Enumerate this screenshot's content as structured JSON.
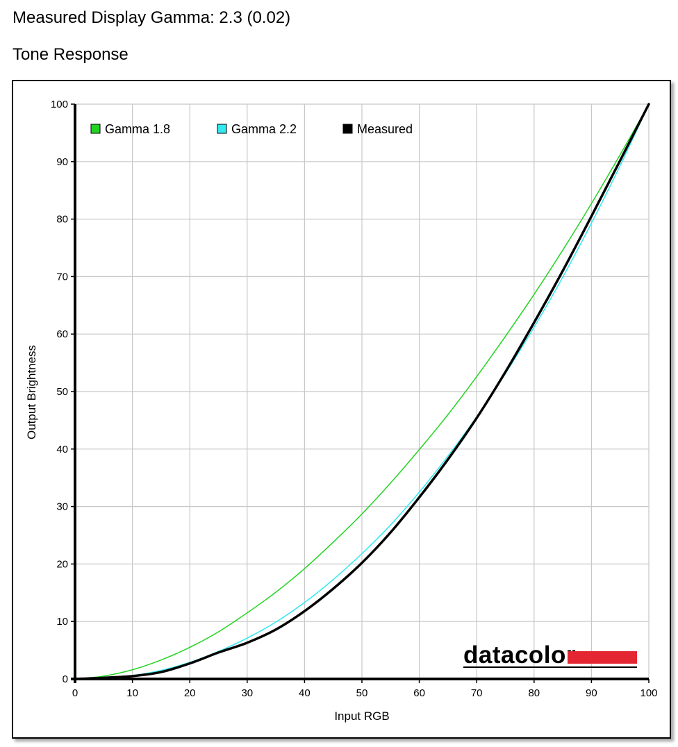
{
  "header": {
    "measured_gamma": "Measured Display Gamma: 2.3 (0.02)",
    "section_title": "Tone Response"
  },
  "logo": {
    "text": "datacolor",
    "accent_color": "#e32631"
  },
  "chart_data": {
    "type": "line",
    "title": "",
    "xlabel": "Input RGB",
    "ylabel": "Output Brightness",
    "xlim": [
      0,
      100
    ],
    "ylim": [
      0,
      100
    ],
    "xticks": [
      0,
      10,
      20,
      30,
      40,
      50,
      60,
      70,
      80,
      90,
      100
    ],
    "yticks": [
      0,
      10,
      20,
      30,
      40,
      50,
      60,
      70,
      80,
      90,
      100
    ],
    "grid": true,
    "legend_position": "top-left",
    "series": [
      {
        "name": "Gamma 1.8",
        "color": "#22d422",
        "stroke_width": 1.5,
        "x": [
          0,
          5,
          10,
          15,
          20,
          25,
          30,
          35,
          40,
          45,
          50,
          55,
          60,
          65,
          70,
          75,
          80,
          85,
          90,
          95,
          100
        ],
        "y": [
          0,
          0.5,
          1.6,
          3.3,
          5.5,
          8.2,
          11.5,
          15.1,
          19.2,
          23.8,
          28.7,
          34.1,
          39.9,
          46.0,
          52.6,
          59.6,
          66.9,
          74.6,
          82.7,
          91.2,
          100
        ]
      },
      {
        "name": "Gamma 2.2",
        "color": "#33e8f0",
        "stroke_width": 1.5,
        "x": [
          0,
          5,
          10,
          15,
          20,
          25,
          30,
          35,
          40,
          45,
          50,
          55,
          60,
          65,
          70,
          75,
          80,
          85,
          90,
          95,
          100
        ],
        "y": [
          0,
          0.1,
          0.6,
          1.5,
          2.9,
          4.8,
          7.1,
          9.9,
          13.3,
          17.3,
          21.8,
          26.8,
          32.5,
          38.8,
          45.6,
          53.1,
          61.2,
          69.9,
          79.3,
          89.3,
          100
        ]
      },
      {
        "name": "Measured",
        "color": "#000000",
        "stroke_width": 3.5,
        "x": [
          0,
          5,
          10,
          15,
          20,
          25,
          30,
          35,
          40,
          45,
          50,
          55,
          60,
          65,
          70,
          75,
          80,
          85,
          90,
          95,
          100
        ],
        "y": [
          0,
          0.2,
          0.5,
          1.2,
          2.7,
          4.6,
          6.3,
          8.6,
          11.8,
          15.7,
          20.2,
          25.5,
          31.6,
          38.2,
          45.4,
          53.4,
          62.0,
          71.0,
          80.5,
          90.2,
          100
        ]
      }
    ]
  }
}
